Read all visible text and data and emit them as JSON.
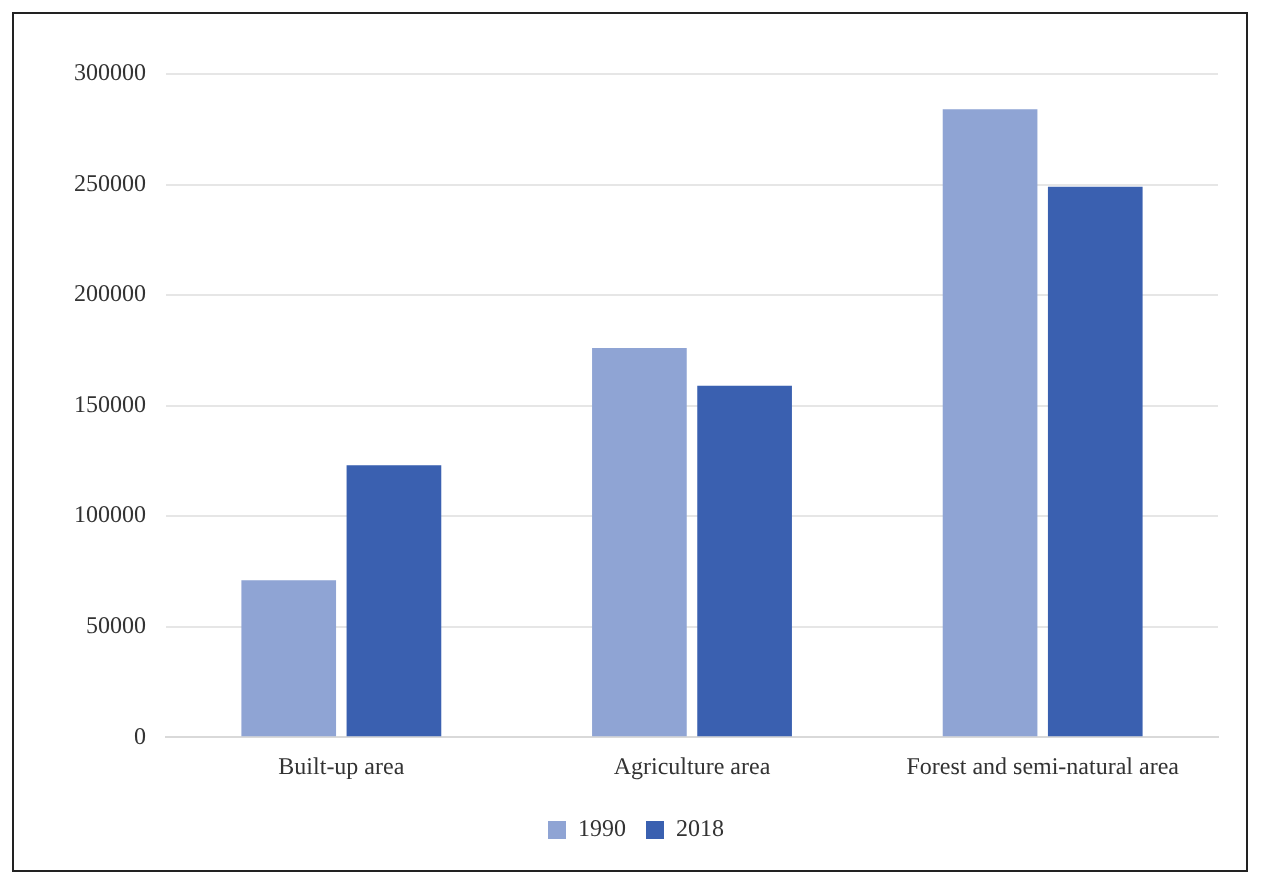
{
  "chart_data": {
    "type": "bar",
    "categories": [
      "Built-up area",
      "Agriculture area",
      "Forest and semi-natural area"
    ],
    "series": [
      {
        "name": "1990",
        "color": "#8fa4d4",
        "values": [
          71000,
          176000,
          284000
        ]
      },
      {
        "name": "2018",
        "color": "#3a60b0",
        "values": [
          123000,
          159000,
          249000
        ]
      }
    ],
    "ylim": [
      0,
      300000
    ],
    "yticks": [
      0,
      50000,
      100000,
      150000,
      200000,
      250000,
      300000
    ],
    "grid": "y",
    "legend": "bottom"
  }
}
